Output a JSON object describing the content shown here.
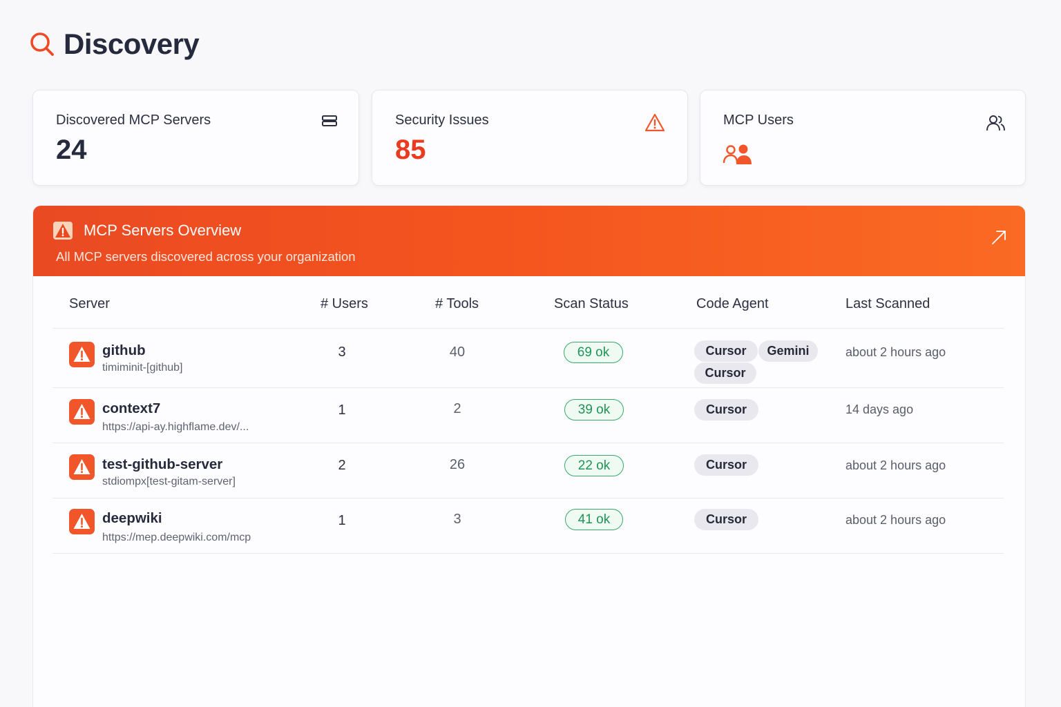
{
  "page": {
    "title": "Discovery"
  },
  "cards": {
    "servers": {
      "label": "Discovered MCP Servers",
      "value": "24"
    },
    "issues": {
      "label": "Security Issues",
      "value": "85"
    },
    "users": {
      "label": "MCP Users"
    }
  },
  "overview": {
    "title": "MCP Servers Overview",
    "subtitle": "All MCP servers discovered across your organization"
  },
  "table": {
    "headers": [
      "Server",
      "# Users",
      "# Tools",
      "Scan Status",
      "Code Agent",
      "Last Scanned"
    ],
    "rows": [
      {
        "name": "github",
        "source": "timiminit-[github]",
        "users": "3",
        "tools": "40",
        "scan": "69 ok",
        "agents": [
          "Cursor",
          "Gemini",
          "Cursor"
        ],
        "last": "about 2 hours ago"
      },
      {
        "name": "context7",
        "source": "https://api-ay.highflame.dev/...",
        "users": "1",
        "tools": "2",
        "scan": "39 ok",
        "agents": [
          "Cursor"
        ],
        "last": "14 days ago"
      },
      {
        "name": "test-github-server",
        "source": "stdiompx[test-gitam-server]",
        "users": "2",
        "tools": "26",
        "scan": "22 ok",
        "agents": [
          "Cursor"
        ],
        "last": "about 2 hours ago"
      },
      {
        "name": "deepwiki",
        "source": "https://mep.deepwiki.com/mcp",
        "users": "1",
        "tools": "3",
        "scan": "41 ok",
        "agents": [
          "Cursor"
        ],
        "last": "about 2 hours ago"
      }
    ]
  },
  "icons": {
    "title": "search-icon",
    "servers_card": "server-icon",
    "issues_card": "warning-icon",
    "users_card": "users-icon",
    "banner": "warning-icon",
    "banner_action": "arrow-up-right-icon",
    "row_severity": "warning-icon"
  },
  "colors": {
    "accent": "#f4541e",
    "danger": "#ea3a1f",
    "ok_green": "#1f9456",
    "chip_bg": "#e9e8ee"
  }
}
